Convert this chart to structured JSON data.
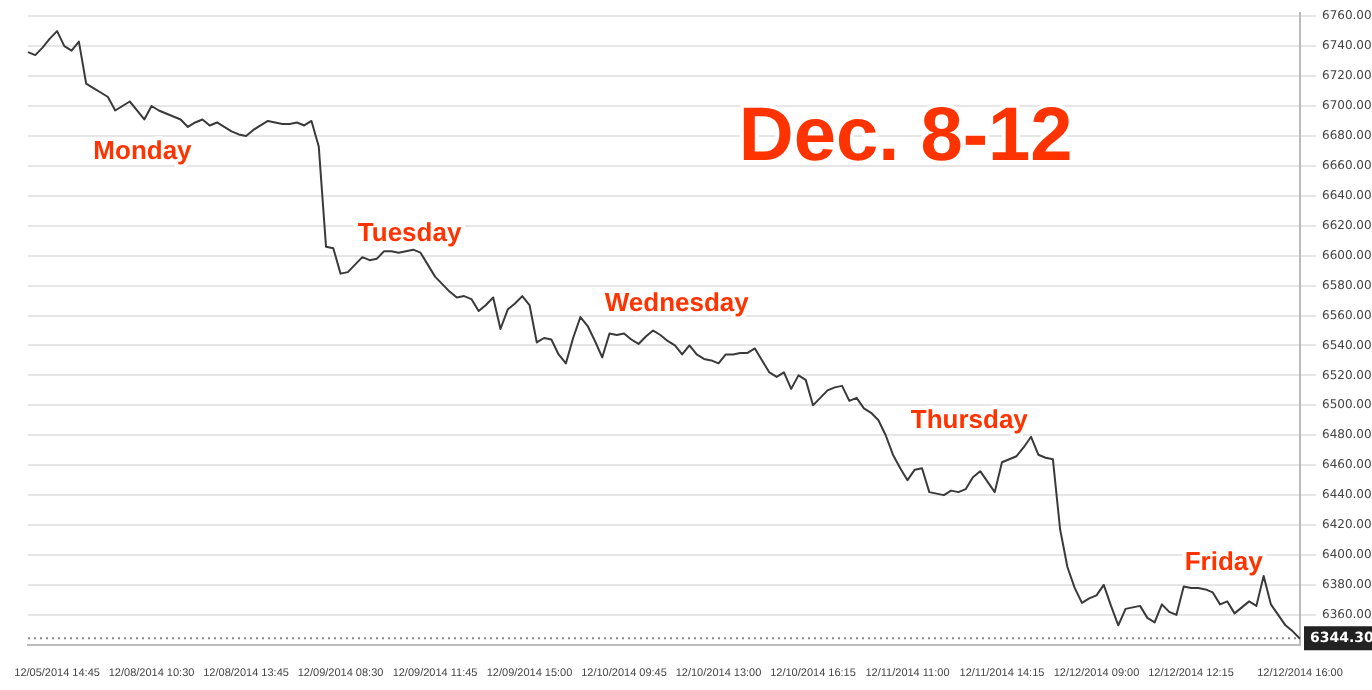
{
  "chart_data": {
    "type": "line",
    "title": "Dec. 8-12",
    "color": "#3a3a3a",
    "marker": "none",
    "line_style": "solid",
    "grid": "y",
    "legend": false,
    "categories": [
      null,
      null,
      null,
      null,
      "12/05/2014 14:45",
      null,
      null,
      null,
      null,
      null,
      null,
      null,
      null,
      null,
      null,
      null,
      null,
      "12/08/2014 10:30",
      null,
      null,
      null,
      null,
      null,
      null,
      null,
      null,
      null,
      null,
      null,
      null,
      "12/08/2014 13:45",
      null,
      null,
      null,
      null,
      null,
      null,
      null,
      null,
      null,
      null,
      null,
      null,
      "12/09/2014 08:30",
      null,
      null,
      null,
      null,
      null,
      null,
      null,
      null,
      null,
      null,
      null,
      null,
      "12/09/2014 11:45",
      null,
      null,
      null,
      null,
      null,
      null,
      null,
      null,
      null,
      null,
      null,
      null,
      "12/09/2014 15:00",
      null,
      null,
      null,
      null,
      null,
      null,
      null,
      null,
      null,
      null,
      null,
      null,
      "12/10/2014 09:45",
      null,
      null,
      null,
      null,
      null,
      null,
      null,
      null,
      null,
      null,
      null,
      null,
      "12/10/2014 13:00",
      null,
      null,
      null,
      null,
      null,
      null,
      null,
      null,
      null,
      null,
      null,
      null,
      "12/10/2014 16:15",
      null,
      null,
      null,
      null,
      null,
      null,
      null,
      null,
      null,
      null,
      null,
      null,
      "12/11/2014 11:00",
      null,
      null,
      null,
      null,
      null,
      null,
      null,
      null,
      null,
      null,
      null,
      null,
      "12/11/2014 14:15",
      null,
      null,
      null,
      null,
      null,
      null,
      null,
      null,
      null,
      null,
      null,
      null,
      "12/12/2014 09:00",
      null,
      null,
      null,
      null,
      null,
      null,
      null,
      null,
      null,
      null,
      null,
      null,
      "12/12/2014 12:15",
      null,
      null,
      null,
      null,
      null,
      null,
      null,
      null,
      null,
      null,
      null,
      null,
      null,
      null,
      "12/12/2014 16:00"
    ],
    "values": [
      6736,
      6734,
      6739,
      6745,
      6750,
      6740,
      6737,
      6743,
      6715,
      6712,
      6709,
      6706,
      6697,
      6700,
      6703,
      6697,
      6691,
      6700,
      6697,
      6695,
      6693,
      6691,
      6686,
      6689,
      6691,
      6687,
      6689,
      6686,
      6683,
      6681,
      6680,
      6684,
      6687,
      6690,
      6689,
      6688,
      6688,
      6689,
      6687,
      6690,
      6673,
      6606,
      6605,
      6588,
      6589,
      6594,
      6599,
      6597,
      6598,
      6603,
      6603,
      6602,
      6603,
      6604,
      6602,
      6594,
      6586,
      6581,
      6576,
      6572,
      6573,
      6571,
      6563,
      6567,
      6572,
      6551,
      6564,
      6568,
      6573,
      6567,
      6542,
      6545,
      6544,
      6534,
      6528,
      6545,
      6559,
      6553,
      6543,
      6532,
      6548,
      6547,
      6548,
      6544,
      6541,
      6546,
      6550,
      6547,
      6543,
      6540,
      6534,
      6540,
      6534,
      6531,
      6530,
      6528,
      6534,
      6534,
      6535,
      6535,
      6538,
      6530,
      6522,
      6519,
      6522,
      6511,
      6520,
      6517,
      6500,
      6505,
      6510,
      6512,
      6513,
      6503,
      6505,
      6498,
      6495,
      6490,
      6480,
      6467,
      6458,
      6450,
      6457,
      6458,
      6442,
      6441,
      6440,
      6443,
      6442,
      6444,
      6452,
      6456,
      6449,
      6442,
      6462,
      6464,
      6466,
      6472,
      6479,
      6467,
      6465,
      6464,
      6417,
      6392,
      6378,
      6368,
      6371,
      6373,
      6380,
      6366,
      6353,
      6364,
      6365,
      6366,
      6358,
      6355,
      6367,
      6362,
      6360,
      6379,
      6378,
      6378,
      6377,
      6375,
      6367,
      6369,
      6361,
      6365,
      6369,
      6366,
      6386,
      6367,
      6360,
      6353,
      6349,
      6344
    ],
    "ylim": [
      6340,
      6762
    ],
    "yticks": [
      {
        "value": 6360,
        "label": "6360.00"
      },
      {
        "value": 6380,
        "label": "6380.00"
      },
      {
        "value": 6400,
        "label": "6400.00"
      },
      {
        "value": 6420,
        "label": "6420.00"
      },
      {
        "value": 6440,
        "label": "6440.00"
      },
      {
        "value": 6460,
        "label": "6460.00"
      },
      {
        "value": 6480,
        "label": "6480.00"
      },
      {
        "value": 6500,
        "label": "6500.00"
      },
      {
        "value": 6520,
        "label": "6520.00"
      },
      {
        "value": 6540,
        "label": "6540.00"
      },
      {
        "value": 6560,
        "label": "6560.00"
      },
      {
        "value": 6580,
        "label": "6580.00"
      },
      {
        "value": 6600,
        "label": "6600.00"
      },
      {
        "value": 6620,
        "label": "6620.00"
      },
      {
        "value": 6640,
        "label": "6640.00"
      },
      {
        "value": 6660,
        "label": "6660.00"
      },
      {
        "value": 6680,
        "label": "6680.00"
      },
      {
        "value": 6700,
        "label": "6700.00"
      },
      {
        "value": 6720,
        "label": "6720.00"
      },
      {
        "value": 6740,
        "label": "6740.00"
      },
      {
        "value": 6760,
        "label": "6760.00"
      }
    ],
    "ref_lines": [
      {
        "axis": "y",
        "value": 6344.3,
        "label": "6344.30",
        "color": "#888888",
        "line_style": "dotted"
      }
    ],
    "annotations": [
      "Monday",
      "Tuesday",
      "Wednesday",
      "Thursday",
      "Friday"
    ]
  }
}
